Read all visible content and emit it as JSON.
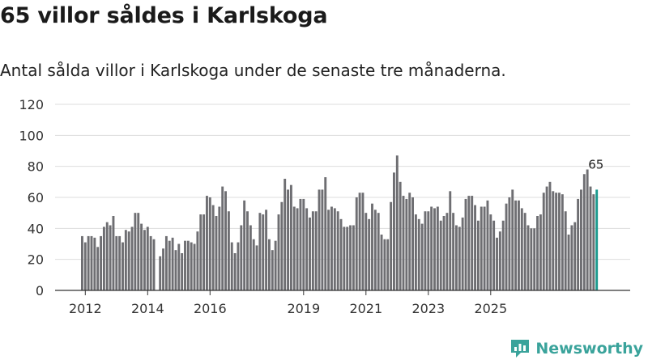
{
  "header": {
    "title": "65 villor såldes i Karlskoga",
    "subtitle": "Antal sålda villor i Karlskoga under de senaste tre månaderna."
  },
  "brand": {
    "name": "Newsworthy",
    "color": "#3aa39b"
  },
  "colors": {
    "bar": "#6e6e72",
    "highlight": "#1a9a8e",
    "grid": "#dddddd",
    "axis": "#333333"
  },
  "chart_data": {
    "type": "bar",
    "title": "65 villor såldes i Karlskoga",
    "xlabel": "",
    "ylabel": "",
    "ylim": [
      0,
      120
    ],
    "yticks": [
      "0",
      "20",
      "40",
      "60",
      "80",
      "100",
      "120"
    ],
    "ytick_values": [
      0,
      20,
      40,
      60,
      80,
      100,
      120
    ],
    "xtick_labels": [
      {
        "label": "2012",
        "index": 1
      },
      {
        "label": "2014",
        "index": 21
      },
      {
        "label": "2016",
        "index": 41
      },
      {
        "label": "2019",
        "index": 71
      },
      {
        "label": "2021",
        "index": 91
      },
      {
        "label": "2023",
        "index": 111
      },
      {
        "label": "2025",
        "index": 131
      }
    ],
    "highlight_label": "65",
    "values": [
      35,
      31,
      35,
      35,
      34,
      28,
      35,
      41,
      44,
      42,
      48,
      35,
      35,
      31,
      39,
      38,
      41,
      50,
      50,
      43,
      39,
      41,
      35,
      33,
      0,
      22,
      27,
      35,
      32,
      34,
      26,
      30,
      24,
      32,
      32,
      31,
      30,
      38,
      49,
      49,
      61,
      60,
      55,
      48,
      54,
      67,
      64,
      51,
      31,
      24,
      31,
      42,
      58,
      51,
      42,
      33,
      29,
      50,
      49,
      52,
      33,
      26,
      32,
      49,
      57,
      72,
      65,
      68,
      54,
      53,
      59,
      59,
      53,
      47,
      51,
      51,
      65,
      65,
      73,
      52,
      54,
      53,
      51,
      46,
      41,
      41,
      42,
      42,
      60,
      63,
      63,
      50,
      46,
      56,
      52,
      50,
      36,
      33,
      33,
      57,
      76,
      87,
      70,
      61,
      59,
      63,
      60,
      49,
      46,
      43,
      51,
      51,
      54,
      53,
      54,
      45,
      48,
      50,
      64,
      50,
      42,
      41,
      47,
      59,
      61,
      61,
      55,
      45,
      54,
      54,
      58,
      49,
      45,
      34,
      38,
      45,
      56,
      60,
      65,
      58,
      58,
      53,
      50,
      42,
      40,
      40,
      48,
      49,
      63,
      67,
      70,
      64,
      63,
      63,
      62,
      51,
      36,
      42,
      44,
      59,
      65,
      75,
      78,
      67,
      62,
      65
    ]
  }
}
